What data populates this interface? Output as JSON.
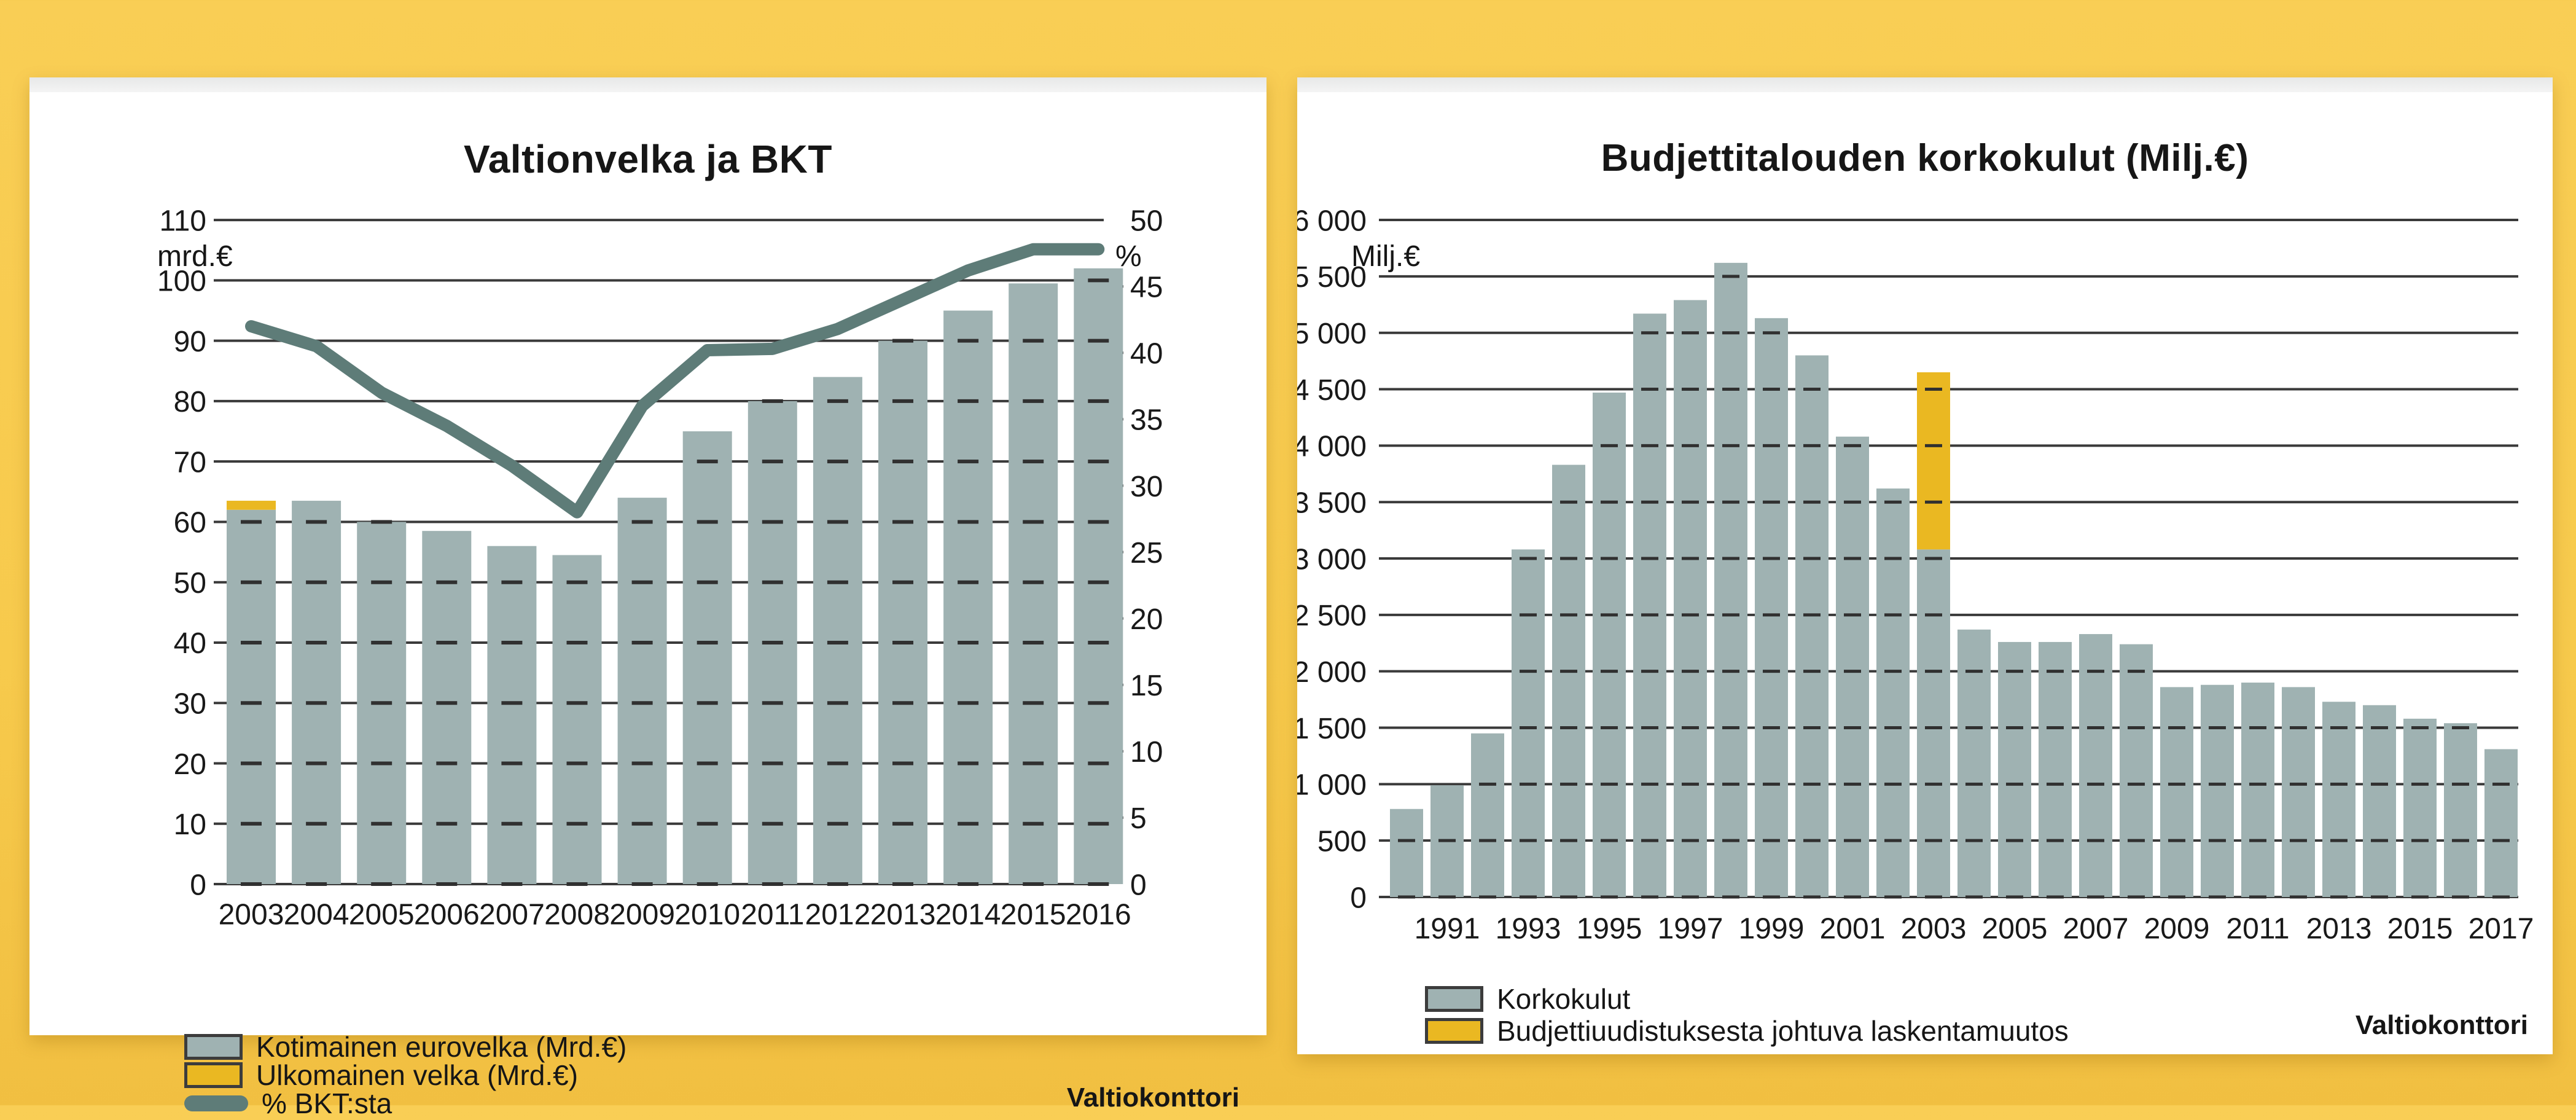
{
  "page": {
    "background_color": "#F7CA4C",
    "panel_color": "#FFFFFF"
  },
  "colors": {
    "bar_gray": "#9FB2B2",
    "bar_yellow": "#EAB822",
    "line_teal": "#5E7C78",
    "gridline": "#3A3A3A",
    "swatch_border": "#3C3C3C"
  },
  "chart_data": [
    {
      "type": "bar+line",
      "title": "Valtionvelka ja BKT",
      "left_axis_label": "mrd.€",
      "right_axis_label": "%",
      "left_ylim": [
        0,
        110
      ],
      "left_tick_step": 10,
      "right_ylim": [
        0,
        50
      ],
      "right_tick_step": 5,
      "grid": "horizontal",
      "legend_position": "bottom-left",
      "categories": [
        2003,
        2004,
        2005,
        2006,
        2007,
        2008,
        2009,
        2010,
        2011,
        2012,
        2013,
        2014,
        2015,
        2016
      ],
      "series": [
        {
          "name": "Kotimainen eurovelka (Mrd.€)",
          "kind": "bar",
          "axis": "left",
          "color": "#9FB2B2",
          "values": [
            62,
            63.5,
            60,
            58.5,
            56,
            54.5,
            64,
            75,
            80,
            84,
            90,
            95,
            99.5,
            102
          ]
        },
        {
          "name": "Ulkomainen velka (Mrd.€)",
          "kind": "bar-stacked",
          "axis": "left",
          "color": "#EAB822",
          "values": [
            1.5,
            0,
            0,
            0,
            0,
            0,
            0,
            0,
            0,
            0,
            0,
            0,
            0,
            0
          ]
        },
        {
          "name": "% BKT:sta",
          "kind": "line",
          "axis": "right",
          "color": "#5E7C78",
          "values": [
            42.0,
            40.5,
            37.0,
            34.5,
            31.5,
            28.0,
            36.0,
            40.2,
            40.3,
            41.8,
            44.0,
            46.2,
            47.8,
            47.8
          ]
        }
      ],
      "source": "Valtiokonttori"
    },
    {
      "type": "bar",
      "title": "Budjettitalouden korkokulut (Milj.€)",
      "left_axis_label": "Milj.€",
      "ylim": [
        0,
        6000
      ],
      "ytick_step": 500,
      "grid": "horizontal",
      "legend_position": "bottom-left",
      "categories": [
        1990,
        1991,
        1992,
        1993,
        1994,
        1995,
        1996,
        1997,
        1998,
        1999,
        2000,
        2001,
        2002,
        2003,
        2004,
        2005,
        2006,
        2007,
        2008,
        2009,
        2010,
        2011,
        2012,
        2013,
        2014,
        2015,
        2016,
        2017
      ],
      "xtick_labels": [
        1991,
        1993,
        1995,
        1997,
        1999,
        2001,
        2003,
        2005,
        2007,
        2009,
        2011,
        2013,
        2015,
        2017
      ],
      "series": [
        {
          "name": "Korkokulut",
          "kind": "bar",
          "color": "#9FB2B2",
          "values": [
            780,
            990,
            1450,
            3080,
            3830,
            4470,
            5170,
            5290,
            5620,
            5130,
            4800,
            4080,
            3620,
            3080,
            2370,
            2260,
            2260,
            2330,
            2240,
            1860,
            1880,
            1900,
            1860,
            1730,
            1700,
            1580,
            1540,
            1310
          ]
        },
        {
          "name": "Budjettiuudistuksesta johtuva laskentamuutos",
          "kind": "bar-stacked",
          "color": "#EAB822",
          "values": [
            0,
            0,
            0,
            0,
            0,
            0,
            0,
            0,
            0,
            0,
            0,
            0,
            0,
            1570,
            0,
            0,
            0,
            0,
            0,
            0,
            0,
            0,
            0,
            0,
            0,
            0,
            0,
            0
          ]
        }
      ],
      "source": "Valtiokonttori"
    }
  ]
}
